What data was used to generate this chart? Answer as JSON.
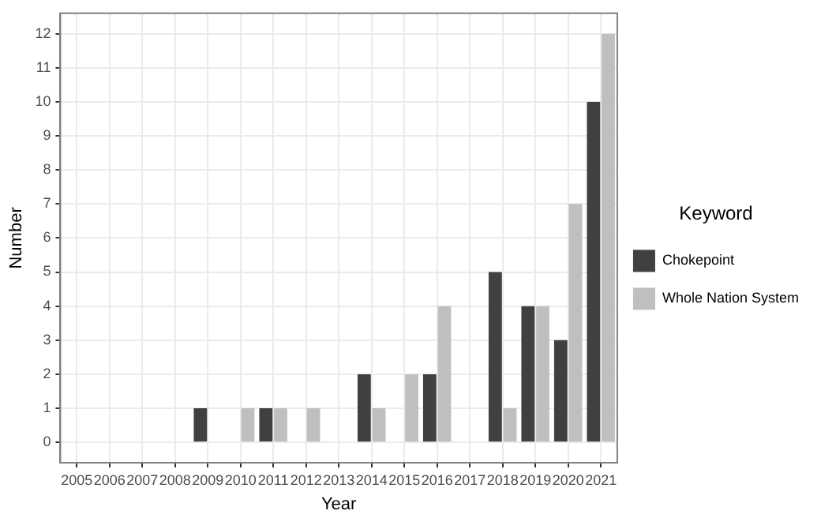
{
  "chart_data": {
    "type": "bar",
    "xlabel": "Year",
    "ylabel": "Number",
    "legend_title": "Keyword",
    "categories": [
      "2005",
      "2006",
      "2007",
      "2008",
      "2009",
      "2010",
      "2011",
      "2012",
      "2013",
      "2014",
      "2015",
      "2016",
      "2017",
      "2018",
      "2019",
      "2020",
      "2021"
    ],
    "series": [
      {
        "name": "Chokepoint",
        "color": "#404040",
        "values": [
          0,
          0,
          0,
          0,
          1,
          0,
          1,
          0,
          0,
          2,
          0,
          2,
          0,
          5,
          4,
          3,
          10
        ]
      },
      {
        "name": "Whole Nation System",
        "color": "#bfbfbf",
        "values": [
          0,
          0,
          0,
          0,
          0,
          1,
          1,
          1,
          0,
          1,
          2,
          4,
          0,
          1,
          4,
          7,
          12
        ]
      }
    ],
    "ylim": [
      -0.6,
      12.6
    ],
    "yticks": [
      0,
      1,
      2,
      3,
      4,
      5,
      6,
      7,
      8,
      9,
      10,
      11,
      12
    ],
    "grid": true,
    "legend": "right"
  }
}
